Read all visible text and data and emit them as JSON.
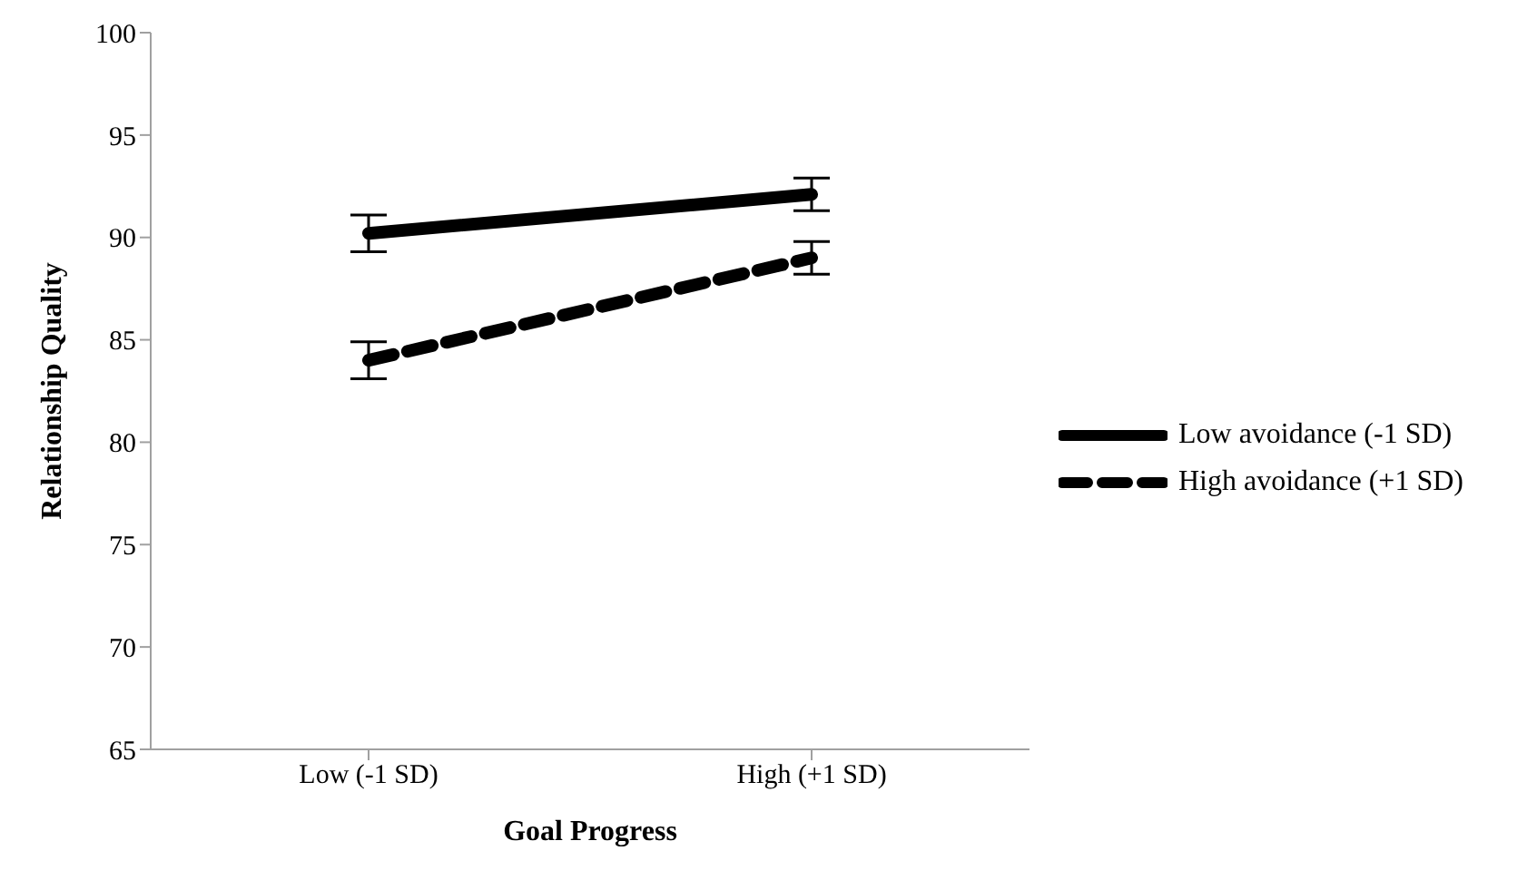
{
  "chart_data": {
    "type": "line",
    "xlabel": "Goal Progress",
    "ylabel": "Relationship Quality",
    "categories": [
      "Low (-1 SD)",
      "High (+1 SD)"
    ],
    "series": [
      {
        "name": "Low avoidance (-1 SD)",
        "color": "#000000",
        "values": [
          90.2,
          92.1
        ],
        "errors": [
          0.9,
          0.8
        ],
        "line_style": "solid"
      },
      {
        "name": "High avoidance (+1 SD)",
        "color": "#000000",
        "values": [
          84.0,
          89.0
        ],
        "errors": [
          0.9,
          0.8
        ],
        "line_style": "dashed"
      }
    ],
    "ylim": [
      65,
      100
    ],
    "yticks": [
      65,
      70,
      75,
      80,
      85,
      90,
      95,
      100
    ],
    "legend": "right",
    "marker": "none"
  }
}
